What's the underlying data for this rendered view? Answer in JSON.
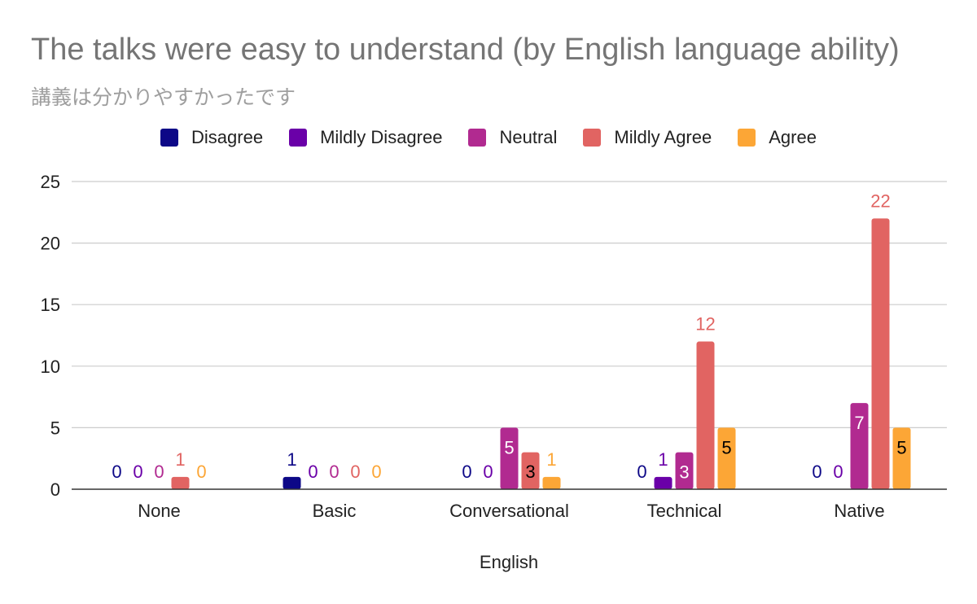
{
  "chart_data": {
    "type": "bar",
    "title": "The talks were easy to understand (by English language ability)",
    "subtitle": "講義は分かりやすかったです",
    "xlabel": "English",
    "ylabel": "",
    "ylim": [
      0,
      25
    ],
    "yticks": [
      0,
      5,
      10,
      15,
      20,
      25
    ],
    "grid": true,
    "legend_position": "top",
    "categories": [
      "None",
      "Basic",
      "Conversational",
      "Technical",
      "Native"
    ],
    "series": [
      {
        "name": "Disagree",
        "color": "#0d0887",
        "values": [
          0,
          1,
          0,
          0,
          0
        ]
      },
      {
        "name": "Mildly Disagree",
        "color": "#6a00a8",
        "values": [
          0,
          0,
          0,
          1,
          0
        ]
      },
      {
        "name": "Neutral",
        "color": "#b12a90",
        "values": [
          0,
          0,
          5,
          3,
          7
        ]
      },
      {
        "name": "Mildly Agree",
        "color": "#e16462",
        "values": [
          1,
          0,
          3,
          12,
          22
        ]
      },
      {
        "name": "Agree",
        "color": "#fca636",
        "values": [
          0,
          0,
          1,
          5,
          5
        ]
      }
    ]
  }
}
